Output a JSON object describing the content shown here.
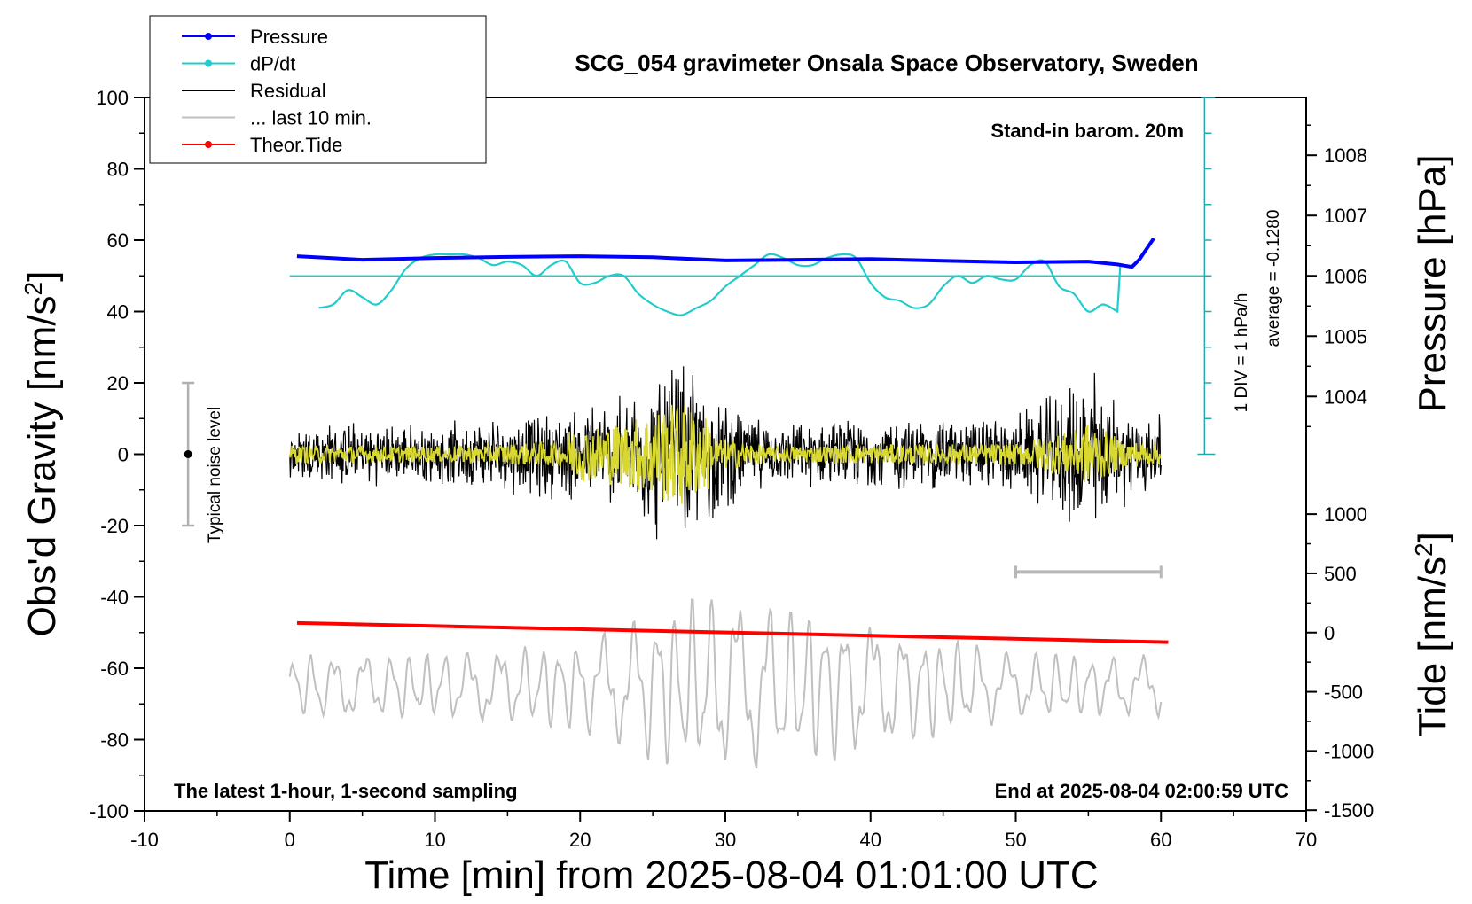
{
  "chart_data": {
    "type": "line",
    "title": "SCG_054 gravimeter Onsala Space Observatory, Sweden",
    "xlabel": "Time [min] from 2025-08-04 01:01:00 UTC",
    "ylabel": "Obs'd Gravity [nm/s",
    "ylabel_sup": "2",
    "ylabel_end": "]",
    "y2label": "Pressure [hPa]",
    "y3label": "Tide [nm/s",
    "y3label_sup": "2",
    "y3label_end": "]",
    "xlim": [
      -10,
      70
    ],
    "ylim": [
      -100,
      100
    ],
    "x_ticks": [
      "-10",
      "0",
      "10",
      "20",
      "30",
      "40",
      "50",
      "60",
      "70"
    ],
    "y_ticks": [
      "-100",
      "-80",
      "-60",
      "-40",
      "-20",
      "0",
      "20",
      "40",
      "60",
      "80",
      "100"
    ],
    "pressure_ticks": [
      "1004",
      "1005",
      "1006",
      "1007",
      "1008"
    ],
    "tide_ticks": [
      "-1500",
      "-1000",
      "-500",
      "0",
      "500",
      "1000"
    ],
    "legend": {
      "placement": "top-left",
      "entries": [
        {
          "label": "Pressure",
          "color": "#0000ff",
          "marker": "dot"
        },
        {
          "label": "dP/dt",
          "color": "#22cccc",
          "marker": "dot"
        },
        {
          "label": "Residual",
          "color": "#000000",
          "marker": "none"
        },
        {
          "label": "... last 10 min.",
          "color": "#c0c0c0",
          "marker": "none"
        },
        {
          "label": "Theor.Tide",
          "color": "#ff0000",
          "marker": "dot"
        }
      ]
    },
    "annotations": {
      "barometer": "Stand-in barom. 20m",
      "div_scale": "1 DIV = 1 hPa/h",
      "average": "average = -0.1280",
      "noise": "Typical noise level",
      "latest": "The latest 1-hour, 1-second sampling",
      "end": "End at 2025-08-04 02:00:59 UTC"
    },
    "series": [
      {
        "name": "Pressure",
        "axis": "pressure",
        "color": "#0000ff",
        "x": [
          0.5,
          5,
          10,
          15,
          20,
          25,
          30,
          35,
          40,
          45,
          50,
          55,
          57,
          58,
          58.5,
          59.5
        ],
        "y": [
          55.5,
          54.5,
          55,
          55.3,
          55.5,
          55.2,
          54.3,
          54.5,
          54.7,
          54.2,
          53.8,
          54,
          53.2,
          52.5,
          54.5,
          60.5
        ]
      },
      {
        "name": "dP/dt",
        "axis": "gravity",
        "color": "#22cccc",
        "baseline": 50,
        "x": [
          2,
          3,
          4,
          5,
          6,
          7,
          8,
          9,
          10,
          11,
          12,
          13,
          14,
          15,
          16,
          17,
          18,
          19,
          20,
          21,
          22,
          23,
          24,
          25,
          26,
          27,
          28,
          29,
          30,
          31,
          32,
          33,
          34,
          35,
          36,
          37,
          38,
          39,
          40,
          41,
          42,
          43,
          44,
          45,
          46,
          47,
          48,
          49,
          50,
          51,
          52,
          53,
          54,
          55,
          56,
          57
        ],
        "y": [
          41,
          42,
          46,
          44,
          42,
          46,
          52,
          55,
          56,
          56,
          56,
          55,
          53,
          54,
          53,
          50,
          53,
          54,
          48,
          48,
          50,
          50,
          45,
          42,
          40,
          39,
          41,
          43,
          47,
          50,
          53,
          56,
          55,
          53,
          53,
          55,
          56,
          55,
          48,
          44,
          43,
          41,
          42,
          47,
          50,
          48,
          50,
          49,
          49,
          53,
          54,
          47,
          45,
          40,
          42,
          40
        ]
      },
      {
        "name": "Residual",
        "axis": "gravity",
        "color": "#000000",
        "x_range": [
          0,
          60
        ],
        "envelope": [
          {
            "x": 0,
            "amp": 10
          },
          {
            "x": 10,
            "amp": 9
          },
          {
            "x": 19,
            "amp": 14
          },
          {
            "x": 23,
            "amp": 18
          },
          {
            "x": 26,
            "amp": 28
          },
          {
            "x": 27,
            "amp": 30
          },
          {
            "x": 29,
            "amp": 20
          },
          {
            "x": 33,
            "amp": 9
          },
          {
            "x": 40,
            "amp": 11
          },
          {
            "x": 50,
            "amp": 12
          },
          {
            "x": 54,
            "amp": 22
          },
          {
            "x": 55,
            "amp": 30
          },
          {
            "x": 57,
            "amp": 16
          },
          {
            "x": 60,
            "amp": 12
          }
        ]
      },
      {
        "name": "... last 10 min.",
        "axis": "gravity",
        "color": "#c0c0c0",
        "x_range": [
          0,
          60
        ],
        "center": -65,
        "envelope": [
          {
            "x": 0,
            "amp": 9
          },
          {
            "x": 10,
            "amp": 9
          },
          {
            "x": 20,
            "amp": 12
          },
          {
            "x": 26,
            "amp": 22
          },
          {
            "x": 30,
            "amp": 25
          },
          {
            "x": 40,
            "amp": 18
          },
          {
            "x": 50,
            "amp": 9
          },
          {
            "x": 60,
            "amp": 8
          }
        ]
      },
      {
        "name": "Theor.Tide",
        "axis": "gravity",
        "color": "#ff0000",
        "x": [
          0.5,
          60.5
        ],
        "y": [
          -47.3,
          -52.7
        ]
      }
    ],
    "noise_bar": {
      "x": -7,
      "center": 0,
      "half_range": 20
    },
    "gray_bar": {
      "x": [
        50,
        60
      ],
      "y": -33
    },
    "scale_bar_ticks": 10
  }
}
